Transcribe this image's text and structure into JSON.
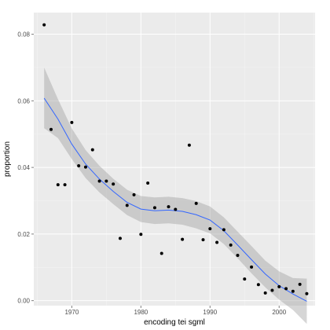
{
  "chart_data": {
    "type": "scatter",
    "xlabel": "encoding tei sgml",
    "ylabel": "proportion",
    "xlim": [
      1964.5,
      2005.2
    ],
    "ylim": [
      -0.0015,
      0.0865
    ],
    "x_ticks": [
      1970,
      1980,
      1990,
      2000
    ],
    "y_ticks": [
      0.0,
      0.02,
      0.04,
      0.06,
      0.08
    ],
    "x_tick_labels": [
      "1970",
      "1980",
      "1990",
      "2000"
    ],
    "y_tick_labels": [
      "0.00",
      "0.02",
      "0.04",
      "0.06",
      "0.08"
    ],
    "grid": true,
    "points": [
      {
        "x": 1966,
        "y": 0.0828
      },
      {
        "x": 1967,
        "y": 0.0514
      },
      {
        "x": 1968,
        "y": 0.0348
      },
      {
        "x": 1969,
        "y": 0.0348
      },
      {
        "x": 1970,
        "y": 0.0535
      },
      {
        "x": 1971,
        "y": 0.0405
      },
      {
        "x": 1972,
        "y": 0.0401
      },
      {
        "x": 1973,
        "y": 0.0453
      },
      {
        "x": 1974,
        "y": 0.0359
      },
      {
        "x": 1975,
        "y": 0.0359
      },
      {
        "x": 1976,
        "y": 0.035
      },
      {
        "x": 1977,
        "y": 0.0187
      },
      {
        "x": 1978,
        "y": 0.0286
      },
      {
        "x": 1979,
        "y": 0.0318
      },
      {
        "x": 1980,
        "y": 0.0199
      },
      {
        "x": 1981,
        "y": 0.0353
      },
      {
        "x": 1982,
        "y": 0.0279
      },
      {
        "x": 1983,
        "y": 0.0142
      },
      {
        "x": 1984,
        "y": 0.0282
      },
      {
        "x": 1985,
        "y": 0.0274
      },
      {
        "x": 1986,
        "y": 0.0184
      },
      {
        "x": 1987,
        "y": 0.0467
      },
      {
        "x": 1988,
        "y": 0.0292
      },
      {
        "x": 1989,
        "y": 0.0183
      },
      {
        "x": 1990,
        "y": 0.0216
      },
      {
        "x": 1991,
        "y": 0.0175
      },
      {
        "x": 1992,
        "y": 0.0213
      },
      {
        "x": 1993,
        "y": 0.0167
      },
      {
        "x": 1994,
        "y": 0.0136
      },
      {
        "x": 1995,
        "y": 0.0065
      },
      {
        "x": 1996,
        "y": 0.0101
      },
      {
        "x": 1997,
        "y": 0.0048
      },
      {
        "x": 1998,
        "y": 0.0023
      },
      {
        "x": 1999,
        "y": 0.0031
      },
      {
        "x": 2000,
        "y": 0.0042
      },
      {
        "x": 2001,
        "y": 0.0036
      },
      {
        "x": 2002,
        "y": 0.0028
      },
      {
        "x": 2003,
        "y": 0.0049
      },
      {
        "x": 2004,
        "y": 0.0021
      }
    ],
    "smooth": {
      "method": "loess",
      "x": [
        1966,
        1968,
        1970,
        1972,
        1974,
        1976,
        1978,
        1980,
        1982,
        1984,
        1986,
        1988,
        1990,
        1992,
        1994,
        1996,
        1998,
        2000,
        2002,
        2004
      ],
      "y": [
        0.0608,
        0.0545,
        0.047,
        0.041,
        0.0365,
        0.0328,
        0.0295,
        0.0275,
        0.027,
        0.0272,
        0.0268,
        0.0258,
        0.0242,
        0.021,
        0.0167,
        0.0123,
        0.008,
        0.0045,
        0.002,
        -0.0002
      ],
      "lower": [
        0.0518,
        0.0488,
        0.0425,
        0.0368,
        0.0325,
        0.029,
        0.0257,
        0.0236,
        0.023,
        0.0232,
        0.0228,
        0.0217,
        0.0202,
        0.017,
        0.0127,
        0.0082,
        0.004,
        0.0003,
        -0.0028,
        -0.007
      ],
      "upper": [
        0.07,
        0.0605,
        0.0517,
        0.0452,
        0.0405,
        0.0366,
        0.0333,
        0.0314,
        0.031,
        0.0312,
        0.0308,
        0.0299,
        0.0283,
        0.025,
        0.0207,
        0.0164,
        0.012,
        0.0088,
        0.0068,
        0.0066
      ]
    },
    "colors": {
      "panel": "#ebebeb",
      "grid": "#ffffff",
      "point": "#000000",
      "line": "#3366ff",
      "ribbon": "#999999",
      "axis_text": "#4d4d4d",
      "axis_title": "#000000"
    }
  }
}
